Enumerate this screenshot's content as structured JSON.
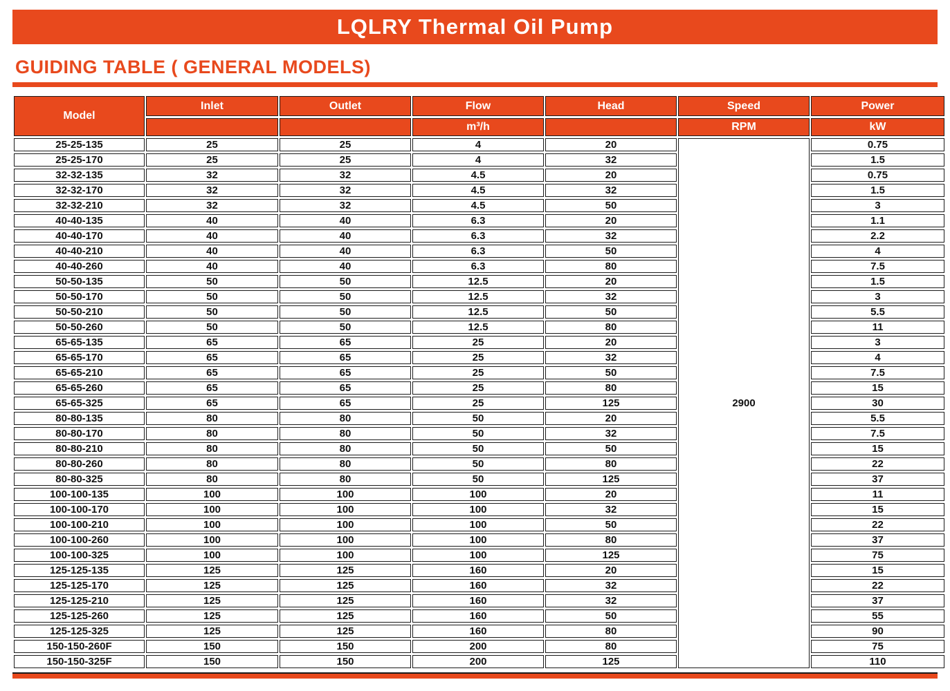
{
  "title": "LQLRY Thermal Oil Pump",
  "heading": "GUIDING TABLE ( GENERAL MODELS)",
  "colors": {
    "accent": "#E8491D",
    "header_text": "#FFFFFF",
    "body_text": "#111111"
  },
  "table": {
    "headers": {
      "model": "Model",
      "inlet": "Inlet",
      "outlet": "Outlet",
      "flow": "Flow",
      "flow_unit": "m³/h",
      "head": "Head",
      "speed": "Speed",
      "speed_unit": "RPM",
      "power": "Power",
      "power_unit": "kW"
    },
    "speed_value": "2900",
    "rows": [
      [
        "25-25-135",
        "25",
        "25",
        "4",
        "20",
        "0.75"
      ],
      [
        "25-25-170",
        "25",
        "25",
        "4",
        "32",
        "1.5"
      ],
      [
        "32-32-135",
        "32",
        "32",
        "4.5",
        "20",
        "0.75"
      ],
      [
        "32-32-170",
        "32",
        "32",
        "4.5",
        "32",
        "1.5"
      ],
      [
        "32-32-210",
        "32",
        "32",
        "4.5",
        "50",
        "3"
      ],
      [
        "40-40-135",
        "40",
        "40",
        "6.3",
        "20",
        "1.1"
      ],
      [
        "40-40-170",
        "40",
        "40",
        "6.3",
        "32",
        "2.2"
      ],
      [
        "40-40-210",
        "40",
        "40",
        "6.3",
        "50",
        "4"
      ],
      [
        "40-40-260",
        "40",
        "40",
        "6.3",
        "80",
        "7.5"
      ],
      [
        "50-50-135",
        "50",
        "50",
        "12.5",
        "20",
        "1.5"
      ],
      [
        "50-50-170",
        "50",
        "50",
        "12.5",
        "32",
        "3"
      ],
      [
        "50-50-210",
        "50",
        "50",
        "12.5",
        "50",
        "5.5"
      ],
      [
        "50-50-260",
        "50",
        "50",
        "12.5",
        "80",
        "11"
      ],
      [
        "65-65-135",
        "65",
        "65",
        "25",
        "20",
        "3"
      ],
      [
        "65-65-170",
        "65",
        "65",
        "25",
        "32",
        "4"
      ],
      [
        "65-65-210",
        "65",
        "65",
        "25",
        "50",
        "7.5"
      ],
      [
        "65-65-260",
        "65",
        "65",
        "25",
        "80",
        "15"
      ],
      [
        "65-65-325",
        "65",
        "65",
        "25",
        "125",
        "30"
      ],
      [
        "80-80-135",
        "80",
        "80",
        "50",
        "20",
        "5.5"
      ],
      [
        "80-80-170",
        "80",
        "80",
        "50",
        "32",
        "7.5"
      ],
      [
        "80-80-210",
        "80",
        "80",
        "50",
        "50",
        "15"
      ],
      [
        "80-80-260",
        "80",
        "80",
        "50",
        "80",
        "22"
      ],
      [
        "80-80-325",
        "80",
        "80",
        "50",
        "125",
        "37"
      ],
      [
        "100-100-135",
        "100",
        "100",
        "100",
        "20",
        "11"
      ],
      [
        "100-100-170",
        "100",
        "100",
        "100",
        "32",
        "15"
      ],
      [
        "100-100-210",
        "100",
        "100",
        "100",
        "50",
        "22"
      ],
      [
        "100-100-260",
        "100",
        "100",
        "100",
        "80",
        "37"
      ],
      [
        "100-100-325",
        "100",
        "100",
        "100",
        "125",
        "75"
      ],
      [
        "125-125-135",
        "125",
        "125",
        "160",
        "20",
        "15"
      ],
      [
        "125-125-170",
        "125",
        "125",
        "160",
        "32",
        "22"
      ],
      [
        "125-125-210",
        "125",
        "125",
        "160",
        "32",
        "37"
      ],
      [
        "125-125-260",
        "125",
        "125",
        "160",
        "50",
        "55"
      ],
      [
        "125-125-325",
        "125",
        "125",
        "160",
        "80",
        "90"
      ],
      [
        "150-150-260F",
        "150",
        "150",
        "200",
        "80",
        "75"
      ],
      [
        "150-150-325F",
        "150",
        "150",
        "200",
        "125",
        "110"
      ]
    ]
  }
}
